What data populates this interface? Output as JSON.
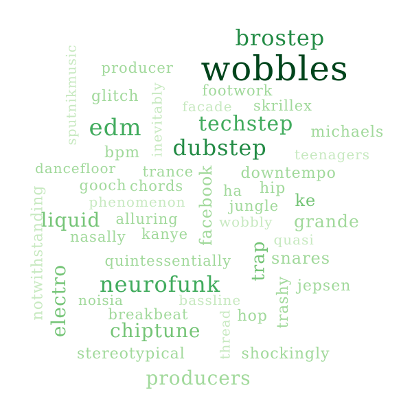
{
  "colors": {
    "c1": "#00441b",
    "c2": "#238b45",
    "c3": "#41ab5d",
    "c4": "#74c476",
    "c5": "#a1d99b",
    "c6": "#c7e9c0"
  },
  "words": [
    {
      "text": "wobbles",
      "color": "#00441b"
    },
    {
      "text": "brostep",
      "color": "#238b45"
    },
    {
      "text": "producer",
      "color": "#a1d99b"
    },
    {
      "text": "footwork",
      "color": "#a1d99b"
    },
    {
      "text": "glitch",
      "color": "#a1d99b"
    },
    {
      "text": "facade",
      "color": "#c7e9c0"
    },
    {
      "text": "skrillex",
      "color": "#a1d99b"
    },
    {
      "text": "edm",
      "color": "#41ab5d"
    },
    {
      "text": "techstep",
      "color": "#41ab5d"
    },
    {
      "text": "michaels",
      "color": "#a1d99b"
    },
    {
      "text": "bpm",
      "color": "#a1d99b"
    },
    {
      "text": "dubstep",
      "color": "#238b45"
    },
    {
      "text": "teenagers",
      "color": "#c7e9c0"
    },
    {
      "text": "dancefloor",
      "color": "#a1d99b"
    },
    {
      "text": "trance",
      "color": "#a1d99b"
    },
    {
      "text": "downtempo",
      "color": "#a1d99b"
    },
    {
      "text": "gooch",
      "color": "#a1d99b"
    },
    {
      "text": "chords",
      "color": "#a1d99b"
    },
    {
      "text": "ha",
      "color": "#a1d99b"
    },
    {
      "text": "hip",
      "color": "#a1d99b"
    },
    {
      "text": "ke",
      "color": "#74c476"
    },
    {
      "text": "phenomenon",
      "color": "#c7e9c0"
    },
    {
      "text": "jungle",
      "color": "#a1d99b"
    },
    {
      "text": "liquid",
      "color": "#74c476"
    },
    {
      "text": "alluring",
      "color": "#a1d99b"
    },
    {
      "text": "wobbly",
      "color": "#c7e9c0"
    },
    {
      "text": "grande",
      "color": "#a1d99b"
    },
    {
      "text": "nasally",
      "color": "#a1d99b"
    },
    {
      "text": "kanye",
      "color": "#a1d99b"
    },
    {
      "text": "quasi",
      "color": "#c7e9c0"
    },
    {
      "text": "quintessentially",
      "color": "#a1d99b"
    },
    {
      "text": "snares",
      "color": "#a1d99b"
    },
    {
      "text": "neurofunk",
      "color": "#41ab5d"
    },
    {
      "text": "jepsen",
      "color": "#a1d99b"
    },
    {
      "text": "noisia",
      "color": "#a1d99b"
    },
    {
      "text": "bassline",
      "color": "#c7e9c0"
    },
    {
      "text": "breakbeat",
      "color": "#a1d99b"
    },
    {
      "text": "hop",
      "color": "#a1d99b"
    },
    {
      "text": "chiptune",
      "color": "#74c476"
    },
    {
      "text": "stereotypical",
      "color": "#a1d99b"
    },
    {
      "text": "shockingly",
      "color": "#a1d99b"
    },
    {
      "text": "producers",
      "color": "#a1d99b"
    },
    {
      "text": "sputnikmusic",
      "color": "#c7e9c0"
    },
    {
      "text": "inevitably",
      "color": "#c7e9c0"
    },
    {
      "text": "facebook",
      "color": "#a1d99b"
    },
    {
      "text": "trap",
      "color": "#74c476"
    },
    {
      "text": "notwithstanding",
      "color": "#c7e9c0"
    },
    {
      "text": "electro",
      "color": "#74c476"
    },
    {
      "text": "thread",
      "color": "#c7e9c0"
    },
    {
      "text": "trashy",
      "color": "#a1d99b"
    }
  ]
}
